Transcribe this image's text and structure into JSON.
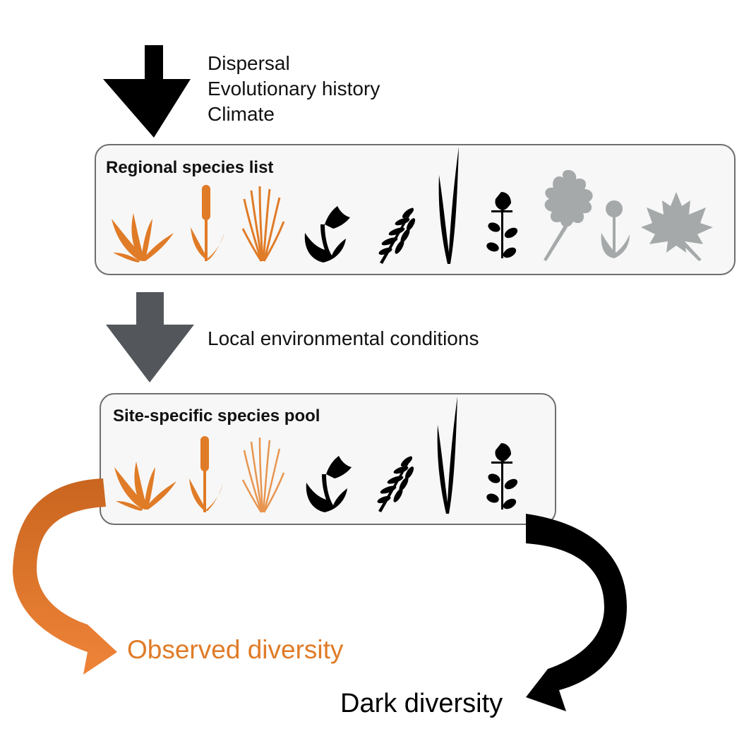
{
  "drivers": [
    "Dispersal",
    "Evolutionary history",
    "Climate"
  ],
  "regional_box": {
    "title": "Regional species list",
    "species": [
      {
        "icon": "grass-tuft-icon",
        "status": "observed"
      },
      {
        "icon": "cattail-icon",
        "status": "observed"
      },
      {
        "icon": "sedge-icon",
        "status": "observed"
      },
      {
        "icon": "tulip-icon",
        "status": "dark"
      },
      {
        "icon": "fern-icon",
        "status": "dark"
      },
      {
        "icon": "blade-icon",
        "status": "dark"
      },
      {
        "icon": "leafy-stem-icon",
        "status": "dark"
      },
      {
        "icon": "oak-leaf-icon",
        "status": "absent"
      },
      {
        "icon": "ball-flower-icon",
        "status": "absent"
      },
      {
        "icon": "maple-leaf-icon",
        "status": "absent"
      }
    ]
  },
  "filter_label": "Local environmental conditions",
  "site_box": {
    "title": "Site-specific species pool",
    "species": [
      {
        "icon": "grass-tuft-icon",
        "status": "observed"
      },
      {
        "icon": "cattail-icon",
        "status": "observed"
      },
      {
        "icon": "sedge-icon",
        "status": "observed"
      },
      {
        "icon": "tulip-icon",
        "status": "dark"
      },
      {
        "icon": "fern-icon",
        "status": "dark"
      },
      {
        "icon": "blade-icon",
        "status": "dark"
      },
      {
        "icon": "leafy-stem-icon",
        "status": "dark"
      }
    ]
  },
  "outcomes": {
    "observed": "Observed diversity",
    "dark": "Dark diversity"
  },
  "colors": {
    "observed": "#e07b27",
    "dark": "#000000",
    "absent": "#a5a9aa",
    "filter_arrow": "#53575c",
    "box_stroke": "#6e6e6e"
  }
}
